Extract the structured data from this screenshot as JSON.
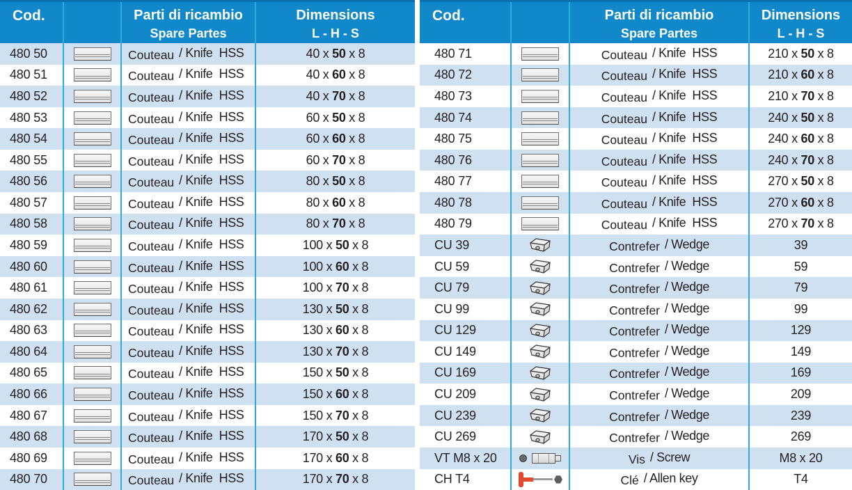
{
  "colors": {
    "header_blue": "#1088c9",
    "header_top_edge": "#0a72ae",
    "column_divider": "#2bacdf",
    "row_shade": "#cfe0f1",
    "text": "#231f20",
    "allen_handle_red": "#e2482e"
  },
  "header": {
    "cod": "Cod.",
    "parts_line1": "Parti di ricambio",
    "parts_line2": "Spare Partes",
    "dim_line1": "Dimensions",
    "dim_line2": "L  -  H  -  S"
  },
  "tables": [
    {
      "rows": [
        {
          "code": "480 50",
          "icon": "knife",
          "fr": "Couteau",
          "en": "/ Knife  HSS",
          "dim": [
            "40 x ",
            "50",
            " x 8"
          ]
        },
        {
          "code": "480 51",
          "icon": "knife",
          "fr": "Couteau",
          "en": "/ Knife  HSS",
          "dim": [
            "40 x ",
            "60",
            " x 8"
          ]
        },
        {
          "code": "480 52",
          "icon": "knife",
          "fr": "Couteau",
          "en": "/ Knife  HSS",
          "dim": [
            "40 x ",
            "70",
            " x 8"
          ]
        },
        {
          "code": "480 53",
          "icon": "knife",
          "fr": "Couteau",
          "en": "/ Knife  HSS",
          "dim": [
            "60 x ",
            "50",
            " x 8"
          ]
        },
        {
          "code": "480 54",
          "icon": "knife",
          "fr": "Couteau",
          "en": "/ Knife  HSS",
          "dim": [
            "60 x ",
            "60",
            " x 8"
          ]
        },
        {
          "code": "480 55",
          "icon": "knife",
          "fr": "Couteau",
          "en": "/ Knife  HSS",
          "dim": [
            "60 x ",
            "70",
            " x 8"
          ]
        },
        {
          "code": "480 56",
          "icon": "knife",
          "fr": "Couteau",
          "en": "/ Knife  HSS",
          "dim": [
            "80 x ",
            "50",
            " x 8"
          ]
        },
        {
          "code": "480 57",
          "icon": "knife",
          "fr": "Couteau",
          "en": "/ Knife  HSS",
          "dim": [
            "80 x ",
            "60",
            " x 8"
          ]
        },
        {
          "code": "480 58",
          "icon": "knife",
          "fr": "Couteau",
          "en": "/ Knife  HSS",
          "dim": [
            "80 x ",
            "70",
            " x 8"
          ]
        },
        {
          "code": "480 59",
          "icon": "knife",
          "fr": "Couteau",
          "en": "/ Knife  HSS",
          "dim": [
            "100 x ",
            "50",
            " x 8"
          ]
        },
        {
          "code": "480 60",
          "icon": "knife",
          "fr": "Couteau",
          "en": "/ Knife  HSS",
          "dim": [
            "100 x ",
            "60",
            " x 8"
          ]
        },
        {
          "code": "480 61",
          "icon": "knife",
          "fr": "Couteau",
          "en": "/ Knife  HSS",
          "dim": [
            "100 x ",
            "70",
            " x 8"
          ]
        },
        {
          "code": "480 62",
          "icon": "knife",
          "fr": "Couteau",
          "en": "/ Knife  HSS",
          "dim": [
            "130 x ",
            "50",
            " x 8"
          ]
        },
        {
          "code": "480 63",
          "icon": "knife",
          "fr": "Couteau",
          "en": "/ Knife  HSS",
          "dim": [
            "130 x ",
            "60",
            " x 8"
          ]
        },
        {
          "code": "480 64",
          "icon": "knife",
          "fr": "Couteau",
          "en": "/ Knife  HSS",
          "dim": [
            "130 x ",
            "70",
            " x 8"
          ]
        },
        {
          "code": "480 65",
          "icon": "knife",
          "fr": "Couteau",
          "en": "/ Knife  HSS",
          "dim": [
            "150 x ",
            "50",
            " x 8"
          ]
        },
        {
          "code": "480 66",
          "icon": "knife",
          "fr": "Couteau",
          "en": "/ Knife  HSS",
          "dim": [
            "150 x ",
            "60",
            " x 8"
          ]
        },
        {
          "code": "480 67",
          "icon": "knife",
          "fr": "Couteau",
          "en": "/ Knife  HSS",
          "dim": [
            "150 x ",
            "70",
            " x 8"
          ]
        },
        {
          "code": "480 68",
          "icon": "knife",
          "fr": "Couteau",
          "en": "/ Knife  HSS",
          "dim": [
            "170 x ",
            "50",
            " x 8"
          ]
        },
        {
          "code": "480 69",
          "icon": "knife",
          "fr": "Couteau",
          "en": "/ Knife  HSS",
          "dim": [
            "170 x ",
            "60",
            " x 8"
          ]
        },
        {
          "code": "480 70",
          "icon": "knife",
          "fr": "Couteau",
          "en": "/ Knife  HSS",
          "dim": [
            "170 x ",
            "70",
            " x 8"
          ]
        }
      ]
    },
    {
      "rows": [
        {
          "code": "480 71",
          "icon": "knife",
          "fr": "Couteau",
          "en": "/ Knife  HSS",
          "dim": [
            "210 x ",
            "50",
            " x 8"
          ]
        },
        {
          "code": "480 72",
          "icon": "knife",
          "fr": "Couteau",
          "en": "/ Knife  HSS",
          "dim": [
            "210 x ",
            "60",
            " x 8"
          ]
        },
        {
          "code": "480 73",
          "icon": "knife",
          "fr": "Couteau",
          "en": "/ Knife  HSS",
          "dim": [
            "210 x ",
            "70",
            " x 8"
          ]
        },
        {
          "code": "480 74",
          "icon": "knife",
          "fr": "Couteau",
          "en": "/ Knife  HSS",
          "dim": [
            "240 x ",
            "50",
            " x 8"
          ]
        },
        {
          "code": "480 75",
          "icon": "knife",
          "fr": "Couteau",
          "en": "/ Knife  HSS",
          "dim": [
            "240 x ",
            "60",
            " x 8"
          ]
        },
        {
          "code": "480 76",
          "icon": "knife",
          "fr": "Couteau",
          "en": "/ Knife  HSS",
          "dim": [
            "240 x ",
            "70",
            " x 8"
          ]
        },
        {
          "code": "480 77",
          "icon": "knife",
          "fr": "Couteau",
          "en": "/ Knife  HSS",
          "dim": [
            "270 x ",
            "50",
            " x 8"
          ]
        },
        {
          "code": "480 78",
          "icon": "knife",
          "fr": "Couteau",
          "en": "/ Knife  HSS",
          "dim": [
            "270 x ",
            "60",
            " x 8"
          ]
        },
        {
          "code": "480 79",
          "icon": "knife",
          "fr": "Couteau",
          "en": "/ Knife  HSS",
          "dim": [
            "270 x ",
            "70",
            " x 8"
          ]
        },
        {
          "code": "CU 39",
          "icon": "wedge",
          "fr": "Contrefer",
          "en": "/ Wedge",
          "dim": [
            "39",
            "",
            ""
          ]
        },
        {
          "code": "CU 59",
          "icon": "wedge",
          "fr": "Contrefer",
          "en": "/ Wedge",
          "dim": [
            "59",
            "",
            ""
          ]
        },
        {
          "code": "CU 79",
          "icon": "wedge",
          "fr": "Contrefer",
          "en": "/ Wedge",
          "dim": [
            "79",
            "",
            ""
          ]
        },
        {
          "code": "CU 99",
          "icon": "wedge",
          "fr": "Contrefer",
          "en": "/ Wedge",
          "dim": [
            "99",
            "",
            ""
          ]
        },
        {
          "code": "CU 129",
          "icon": "wedge",
          "fr": "Contrefer",
          "en": "/ Wedge",
          "dim": [
            "129",
            "",
            ""
          ]
        },
        {
          "code": "CU 149",
          "icon": "wedge",
          "fr": "Contrefer",
          "en": "/ Wedge",
          "dim": [
            "149",
            "",
            ""
          ]
        },
        {
          "code": "CU 169",
          "icon": "wedge",
          "fr": "Contrefer",
          "en": "/ Wedge",
          "dim": [
            "169",
            "",
            ""
          ]
        },
        {
          "code": "CU 209",
          "icon": "wedge",
          "fr": "Contrefer",
          "en": "/ Wedge",
          "dim": [
            "209",
            "",
            ""
          ]
        },
        {
          "code": "CU 239",
          "icon": "wedge",
          "fr": "Contrefer",
          "en": "/ Wedge",
          "dim": [
            "239",
            "",
            ""
          ]
        },
        {
          "code": "CU 269",
          "icon": "wedge",
          "fr": "Contrefer",
          "en": "/ Wedge",
          "dim": [
            "269",
            "",
            ""
          ]
        },
        {
          "code": "VT M8 x 20",
          "icon": "screw",
          "fr": "Vis",
          "en": "/ Screw",
          "dim": [
            "M8 x 20",
            "",
            ""
          ]
        },
        {
          "code": "CH T4",
          "icon": "allen",
          "fr": "Clé",
          "en": "/ Allen key",
          "dim": [
            "T4",
            "",
            ""
          ]
        }
      ]
    }
  ]
}
